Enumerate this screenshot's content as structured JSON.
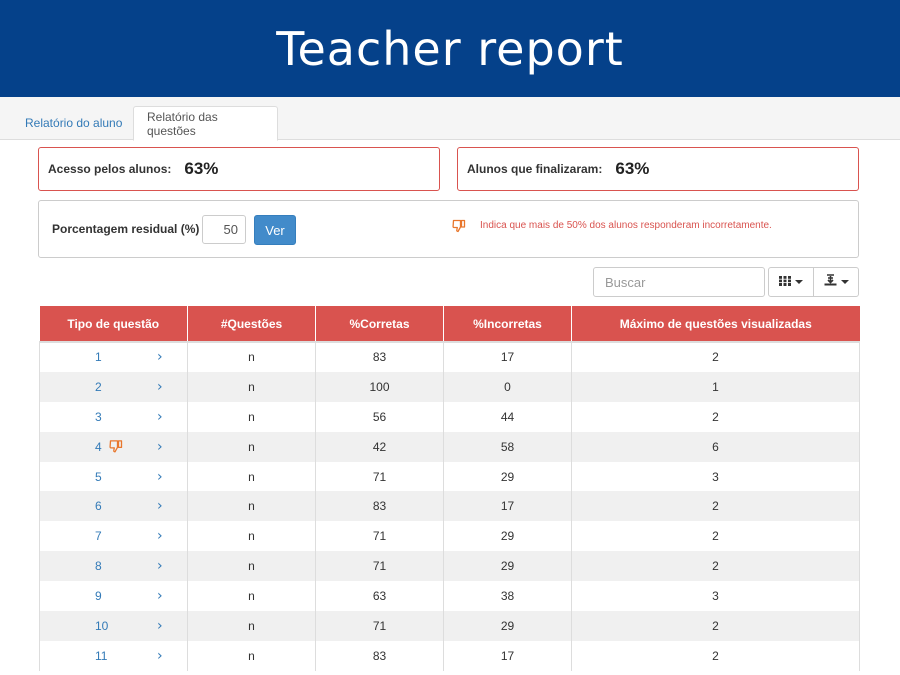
{
  "banner": {
    "title": "Teacher report"
  },
  "tabs": [
    {
      "label": "Relatório do aluno"
    },
    {
      "label": "Relatório das questões"
    }
  ],
  "stats": {
    "access_label": "Acesso pelos alunos:",
    "access_value": "63%",
    "finished_label": "Alunos que finalizaram:",
    "finished_value": "63%"
  },
  "filter": {
    "label": "Porcentagem residual (%)",
    "value": "50",
    "button": "Ver",
    "legend": "Indica que mais de 50% dos alunos responderam incorretamente.",
    "legend_icon": "thumbs-down-icon"
  },
  "toolbar": {
    "search_placeholder": "Buscar",
    "columns_icon": "columns-icon",
    "export_icon": "export-icon"
  },
  "colors": {
    "banner": "#05418a",
    "header": "#d9534f",
    "link": "#337ab7",
    "accent": "#428bca",
    "warning_icon": "#e8762c"
  },
  "table": {
    "columns": [
      "Tipo de questão",
      "#Questões",
      "%Corretas",
      "%Incorretas",
      "Máximo de questões visualizadas"
    ],
    "rows": [
      {
        "q": "1",
        "n": "n",
        "correct": "83",
        "incorrect": "17",
        "max": "2",
        "flag": false
      },
      {
        "q": "2",
        "n": "n",
        "correct": "100",
        "incorrect": "0",
        "max": "1",
        "flag": false
      },
      {
        "q": "3",
        "n": "n",
        "correct": "56",
        "incorrect": "44",
        "max": "2",
        "flag": false
      },
      {
        "q": "4",
        "n": "n",
        "correct": "42",
        "incorrect": "58",
        "max": "6",
        "flag": true
      },
      {
        "q": "5",
        "n": "n",
        "correct": "71",
        "incorrect": "29",
        "max": "3",
        "flag": false
      },
      {
        "q": "6",
        "n": "n",
        "correct": "83",
        "incorrect": "17",
        "max": "2",
        "flag": false
      },
      {
        "q": "7",
        "n": "n",
        "correct": "71",
        "incorrect": "29",
        "max": "2",
        "flag": false
      },
      {
        "q": "8",
        "n": "n",
        "correct": "71",
        "incorrect": "29",
        "max": "2",
        "flag": false
      },
      {
        "q": "9",
        "n": "n",
        "correct": "63",
        "incorrect": "38",
        "max": "3",
        "flag": false
      },
      {
        "q": "10",
        "n": "n",
        "correct": "71",
        "incorrect": "29",
        "max": "2",
        "flag": false
      },
      {
        "q": "11",
        "n": "n",
        "correct": "83",
        "incorrect": "17",
        "max": "2",
        "flag": false
      }
    ]
  }
}
